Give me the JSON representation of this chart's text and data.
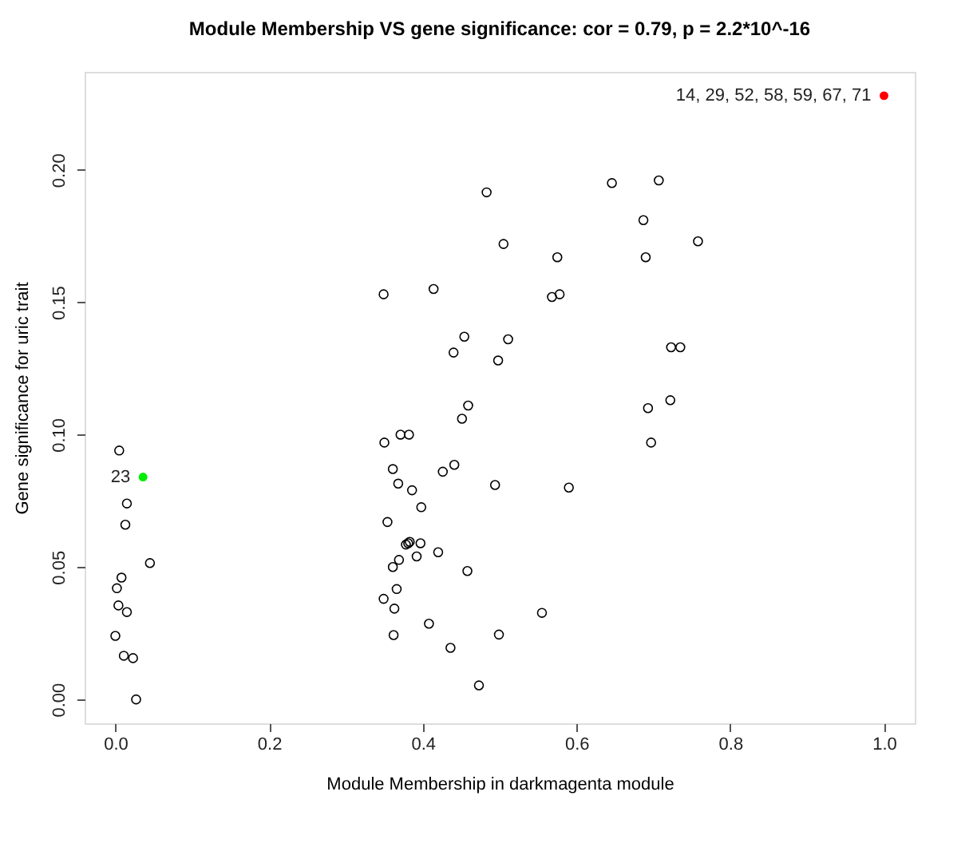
{
  "chart_data": {
    "type": "scatter",
    "title": "Module Membership VS gene significance: cor = 0.79, p = 2.2*10^-16",
    "xlabel": "Module Membership in darkmagenta module",
    "ylabel": "Gene significance for uric trait",
    "xlim": [
      -0.04,
      1.04
    ],
    "ylim": [
      -0.009,
      0.237
    ],
    "xticks": [
      {
        "value": 0,
        "label": "0.0"
      },
      0.2,
      0.4,
      0.6,
      0.8,
      {
        "value": 1,
        "label": "1.0"
      }
    ],
    "yticks": [
      {
        "value": 0,
        "label": "0.00"
      },
      0.05,
      {
        "value": 0.1,
        "label": "0.10"
      },
      0.15,
      {
        "value": 0.2,
        "label": "0.20"
      }
    ],
    "grid": false,
    "marker": "circle",
    "series": [
      {
        "color": "#000000",
        "x": [
          0.483,
          0.646,
          0.707,
          0.687,
          0.505,
          0.758,
          0.575,
          0.69,
          0.349,
          0.414,
          0.568,
          0.578,
          0.454,
          0.44,
          0.511,
          0.498,
          0.723,
          0.735,
          0.459,
          0.451,
          0.693,
          0.722,
          0.697,
          0.005,
          0.35,
          0.371,
          0.382,
          0.015,
          0.013,
          0.045,
          0.008,
          0.002,
          0.004,
          0.015,
          0.0,
          0.011,
          0.023,
          0.027,
          0.361,
          0.368,
          0.386,
          0.426,
          0.441,
          0.494,
          0.59,
          0.398,
          0.354,
          0.378,
          0.381,
          0.383,
          0.397,
          0.42,
          0.392,
          0.369,
          0.361,
          0.458,
          0.366,
          0.349,
          0.363,
          0.555,
          0.408,
          0.362,
          0.499,
          0.436,
          0.473
        ],
        "values": [
          0.1915,
          0.195,
          0.196,
          0.181,
          0.172,
          0.173,
          0.167,
          0.167,
          0.153,
          0.155,
          0.152,
          0.153,
          0.137,
          0.131,
          0.136,
          0.128,
          0.133,
          0.133,
          0.111,
          0.106,
          0.11,
          0.113,
          0.097,
          0.094,
          0.097,
          0.1,
          0.1,
          0.074,
          0.066,
          0.0515,
          0.046,
          0.042,
          0.0355,
          0.033,
          0.024,
          0.0165,
          0.0156,
          0.0,
          0.087,
          0.0815,
          0.079,
          0.086,
          0.0886,
          0.081,
          0.08,
          0.0726,
          0.067,
          0.0585,
          0.059,
          0.0595,
          0.059,
          0.0556,
          0.054,
          0.0527,
          0.05,
          0.0485,
          0.0417,
          0.038,
          0.0343,
          0.0327,
          0.0286,
          0.0243,
          0.0245,
          0.0195,
          0.0053
        ]
      },
      {
        "color": "#ff0000",
        "x": [
          1.0
        ],
        "values": [
          0.228
        ]
      },
      {
        "color": "#00ee00",
        "x": [
          0.036
        ],
        "values": [
          0.084
        ]
      }
    ],
    "annotations": [
      {
        "text": "14, 29, 52, 58, 59, 67, 71",
        "x": 1.0,
        "y": 0.228
      },
      {
        "text": "23",
        "x": 0.036,
        "y": 0.084
      }
    ]
  }
}
